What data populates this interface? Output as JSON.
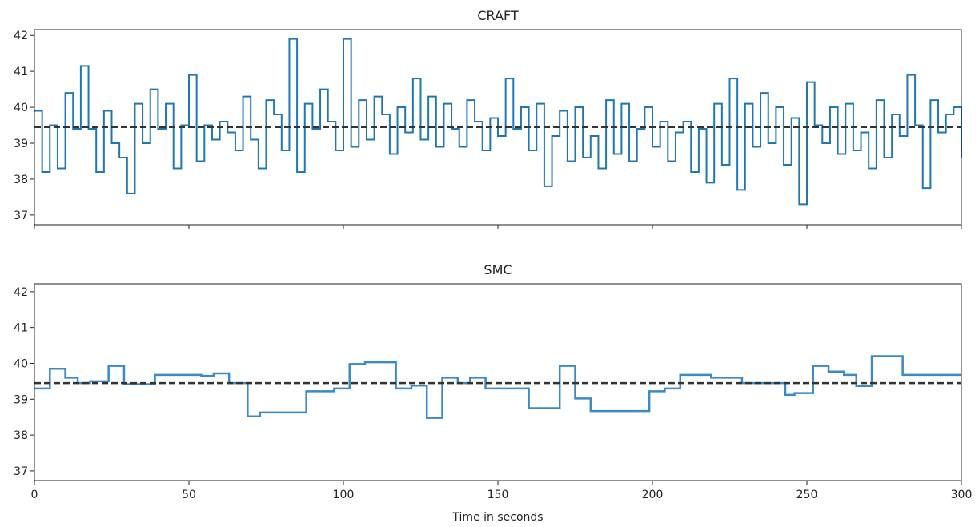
{
  "chart_data": [
    {
      "type": "line",
      "step": "post",
      "title": "CRAFT",
      "color": "#1f77b4",
      "linewidth": 2,
      "hline": 39.45,
      "xlim": [
        0,
        300
      ],
      "ylim": [
        36.73,
        42.16
      ],
      "xticks": [
        0,
        50,
        100,
        150,
        200,
        250,
        300
      ],
      "yticks": [
        37,
        38,
        39,
        40,
        41,
        42
      ],
      "show_xticklabels": false,
      "x": [
        0,
        2.5,
        5,
        7.5,
        10,
        12.5,
        15,
        17.5,
        20,
        22.5,
        25,
        27.5,
        30,
        32.5,
        35,
        37.5,
        40,
        42.5,
        45,
        47.5,
        50,
        52.5,
        55,
        57.5,
        60,
        62.5,
        65,
        67.5,
        70,
        72.5,
        75,
        77.5,
        80,
        82.5,
        85,
        87.5,
        90,
        92.5,
        95,
        97.5,
        100,
        102.5,
        105,
        107.5,
        110,
        112.5,
        115,
        117.5,
        120,
        122.5,
        125,
        127.5,
        130,
        132.5,
        135,
        137.5,
        140,
        142.5,
        145,
        147.5,
        150,
        152.5,
        155,
        157.5,
        160,
        162.5,
        165,
        167.5,
        170,
        172.5,
        175,
        177.5,
        180,
        182.5,
        185,
        187.5,
        190,
        192.5,
        195,
        197.5,
        200,
        202.5,
        205,
        207.5,
        210,
        212.5,
        215,
        217.5,
        220,
        222.5,
        225,
        227.5,
        230,
        232.5,
        235,
        237.5,
        240,
        242.5,
        245,
        247.5,
        250,
        252.5,
        255,
        257.5,
        260,
        262.5,
        265,
        267.5,
        270,
        272.5,
        275,
        277.5,
        280,
        282.5,
        285,
        287.5,
        290,
        292.5,
        295,
        297.5,
        300
      ],
      "values": [
        39.9,
        38.2,
        39.5,
        38.3,
        40.4,
        39.4,
        41.15,
        39.4,
        38.2,
        39.9,
        39.0,
        38.6,
        37.6,
        40.1,
        39.0,
        40.5,
        39.4,
        40.1,
        38.3,
        39.5,
        40.9,
        38.5,
        39.5,
        39.1,
        39.6,
        39.3,
        38.8,
        40.3,
        39.1,
        38.3,
        40.2,
        39.8,
        38.8,
        41.9,
        38.2,
        40.1,
        39.4,
        40.5,
        39.6,
        38.8,
        41.9,
        38.9,
        40.2,
        39.1,
        40.3,
        39.8,
        38.7,
        40.0,
        39.3,
        40.8,
        39.1,
        40.3,
        38.9,
        40.1,
        39.4,
        38.9,
        40.2,
        39.6,
        38.8,
        39.7,
        39.2,
        40.8,
        39.4,
        40.0,
        38.8,
        40.1,
        37.8,
        39.2,
        39.9,
        38.5,
        40.0,
        38.6,
        39.2,
        38.3,
        40.2,
        38.7,
        40.1,
        38.5,
        39.4,
        40.0,
        38.9,
        39.6,
        38.5,
        39.3,
        39.6,
        38.2,
        39.4,
        37.9,
        40.1,
        38.4,
        40.8,
        37.7,
        40.1,
        38.9,
        40.4,
        39.0,
        40.0,
        38.4,
        39.7,
        37.3,
        40.7,
        39.5,
        39.0,
        40.0,
        38.7,
        40.1,
        38.8,
        39.3,
        38.3,
        40.2,
        38.6,
        39.8,
        39.2,
        40.9,
        39.5,
        37.75,
        40.2,
        39.3,
        39.8,
        40.0,
        38.6
      ]
    },
    {
      "type": "line",
      "step": "post",
      "title": "SMC",
      "color": "#3a89c9",
      "linewidth": 2.5,
      "hline": 39.45,
      "xlabel": "Time in seconds",
      "xlim": [
        0,
        300
      ],
      "ylim": [
        36.73,
        42.22
      ],
      "xticks": [
        0,
        50,
        100,
        150,
        200,
        250,
        300
      ],
      "yticks": [
        37,
        38,
        39,
        40,
        41,
        42
      ],
      "show_xticklabels": true,
      "x": [
        0,
        5,
        10,
        14,
        18,
        24,
        29,
        39,
        54,
        58,
        63,
        69,
        73,
        88,
        97,
        102,
        107,
        117,
        122,
        127,
        132,
        137,
        141,
        146,
        160,
        170,
        175,
        180,
        199,
        204,
        209,
        219,
        229,
        243,
        246,
        252,
        257,
        262,
        266,
        271,
        281,
        300
      ],
      "values": [
        39.3,
        39.85,
        39.6,
        39.45,
        39.5,
        39.93,
        39.42,
        39.68,
        39.65,
        39.72,
        39.45,
        38.52,
        38.63,
        39.22,
        39.3,
        39.98,
        40.03,
        39.3,
        39.38,
        38.48,
        39.6,
        39.45,
        39.6,
        39.3,
        38.75,
        39.93,
        39.02,
        38.67,
        39.22,
        39.3,
        39.68,
        39.6,
        39.45,
        39.12,
        39.17,
        39.93,
        39.77,
        39.68,
        39.37,
        40.2,
        39.68,
        39.68
      ]
    }
  ]
}
